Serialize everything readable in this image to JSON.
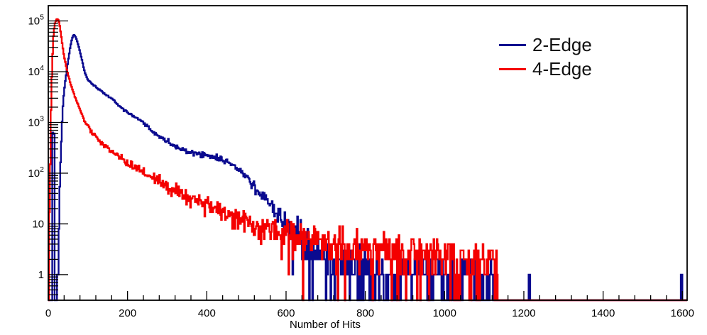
{
  "chart_data": {
    "type": "line",
    "subtype": "step-histogram",
    "title": "",
    "xlabel": "Number of Hits",
    "ylabel": "",
    "x_range": [
      0,
      1612
    ],
    "y_range": [
      0.313,
      200000
    ],
    "y_scale": "log",
    "grid": false,
    "x_ticks": {
      "major_step": 200,
      "minor_step": 40,
      "labels": [
        "0",
        "200",
        "400",
        "600",
        "800",
        "1000",
        "1200",
        "1400",
        "1600"
      ],
      "label_values": [
        0,
        200,
        400,
        600,
        800,
        1000,
        1200,
        1400,
        1600
      ]
    },
    "y_ticks": {
      "labels": [
        {
          "value": 1,
          "base": "1",
          "exp": ""
        },
        {
          "value": 10,
          "base": "10",
          "exp": ""
        },
        {
          "value": 100,
          "base": "10",
          "exp": "2"
        },
        {
          "value": 1000,
          "base": "10",
          "exp": "3"
        },
        {
          "value": 10000,
          "base": "10",
          "exp": "4"
        },
        {
          "value": 100000,
          "base": "10",
          "exp": "5"
        }
      ],
      "minor": "log-decades 2-9"
    },
    "bin_width": 2,
    "series": [
      {
        "name": "2-Edge",
        "color": "#0a0a8f",
        "anchors": [
          [
            9,
            0.001
          ],
          [
            10,
            600
          ],
          [
            15,
            600
          ],
          [
            16,
            0.3
          ],
          [
            22,
            0.4
          ],
          [
            25,
            2
          ],
          [
            28,
            30
          ],
          [
            32,
            300
          ],
          [
            36,
            1600
          ],
          [
            40,
            4200
          ],
          [
            45,
            8500
          ],
          [
            50,
            16000
          ],
          [
            55,
            29000
          ],
          [
            60,
            45000
          ],
          [
            64,
            54000
          ],
          [
            68,
            50000
          ],
          [
            72,
            42000
          ],
          [
            78,
            29000
          ],
          [
            85,
            17000
          ],
          [
            92,
            9800
          ],
          [
            100,
            6900
          ],
          [
            110,
            5800
          ],
          [
            120,
            5000
          ],
          [
            130,
            4400
          ],
          [
            145,
            3500
          ],
          [
            164,
            2800
          ],
          [
            185,
            1900
          ],
          [
            210,
            1400
          ],
          [
            236,
            1050
          ],
          [
            270,
            600
          ],
          [
            300,
            420
          ],
          [
            330,
            300
          ],
          [
            360,
            255
          ],
          [
            400,
            225
          ],
          [
            430,
            195
          ],
          [
            463,
            150
          ],
          [
            490,
            100
          ],
          [
            520,
            55
          ],
          [
            550,
            30
          ],
          [
            576,
            18
          ],
          [
            605,
            10
          ],
          [
            630,
            7
          ],
          [
            660,
            4
          ],
          [
            690,
            2.2
          ],
          [
            720,
            1.5
          ],
          [
            800,
            1.1
          ],
          [
            900,
            1.0
          ],
          [
            1000,
            0.9
          ],
          [
            1060,
            0.8
          ],
          [
            1100,
            0.5
          ],
          [
            1130,
            0.4
          ],
          [
            1133,
            0.001
          ]
        ],
        "extra_bins": [
          [
            1213,
            1
          ],
          [
            1215,
            1
          ],
          [
            1597,
            1
          ],
          [
            1599,
            1
          ]
        ],
        "peak": {
          "x": 64,
          "y": 54000
        }
      },
      {
        "name": "4-Edge",
        "color": "#f40000",
        "anchors": [
          [
            2,
            8
          ],
          [
            4,
            30
          ],
          [
            6,
            800
          ],
          [
            8,
            4000
          ],
          [
            10,
            15000
          ],
          [
            13,
            50000
          ],
          [
            16,
            85000
          ],
          [
            20,
            105000
          ],
          [
            24,
            110000
          ],
          [
            28,
            90000
          ],
          [
            32,
            55000
          ],
          [
            36,
            32000
          ],
          [
            40,
            20000
          ],
          [
            48,
            10000
          ],
          [
            57,
            5500
          ],
          [
            70,
            2800
          ],
          [
            80,
            1800
          ],
          [
            93,
            1000
          ],
          [
            110,
            640
          ],
          [
            130,
            430
          ],
          [
            150,
            310
          ],
          [
            170,
            240
          ],
          [
            200,
            160
          ],
          [
            230,
            115
          ],
          [
            260,
            85
          ],
          [
            290,
            62
          ],
          [
            320,
            47
          ],
          [
            350,
            36
          ],
          [
            380,
            28
          ],
          [
            420,
            20
          ],
          [
            460,
            15
          ],
          [
            500,
            11
          ],
          [
            550,
            8
          ],
          [
            600,
            6.5
          ],
          [
            650,
            5.5
          ],
          [
            700,
            4.5
          ],
          [
            750,
            4
          ],
          [
            800,
            3.4
          ],
          [
            850,
            3.2
          ],
          [
            950,
            2.8
          ],
          [
            1050,
            2.2
          ],
          [
            1100,
            1.8
          ],
          [
            1140,
            1.4
          ],
          [
            1144,
            0.001
          ]
        ],
        "extra_bins": [],
        "peak": {
          "x": 22,
          "y": 110000
        }
      }
    ],
    "legend": {
      "position": "top-right",
      "items": [
        {
          "label": "2-Edge",
          "color": "#0a0a8f"
        },
        {
          "label": "4-Edge",
          "color": "#f40000"
        }
      ]
    },
    "frame_color": "#000000",
    "background_color": "#ffffff"
  }
}
